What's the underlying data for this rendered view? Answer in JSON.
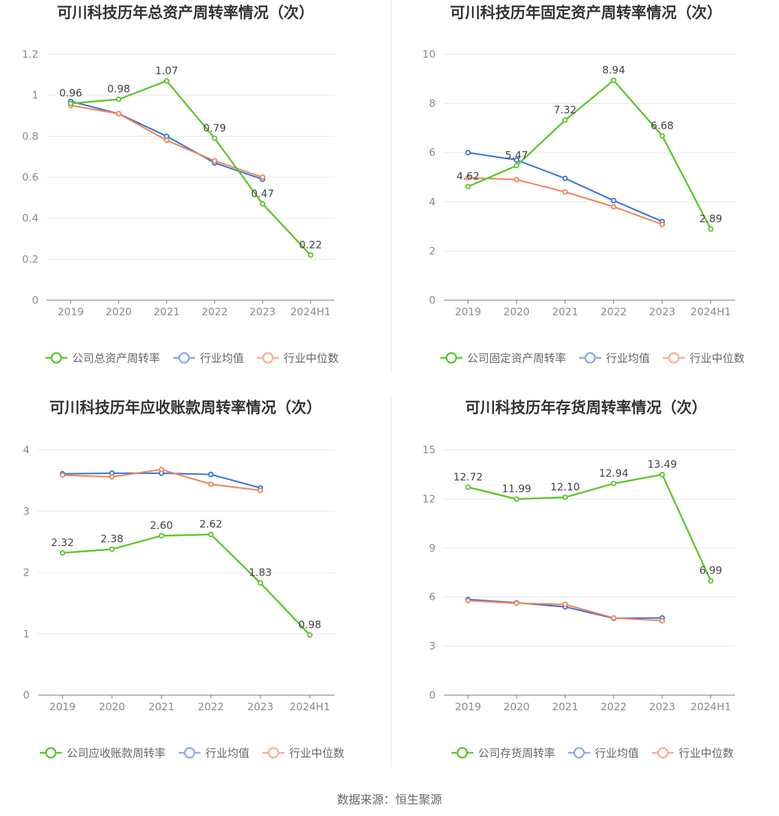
{
  "colors": {
    "company": "#5cc72b",
    "avg": "#3b73db",
    "median": "#f0855a",
    "legend_avg": "#8aacea",
    "legend_median": "#f5b095",
    "grid": "#e3e6f0",
    "axis": "#6e7079",
    "tick_text": "#8a8a8a",
    "title": "#333333",
    "label": "#444444"
  },
  "source": "数据来源：恒生聚源",
  "chart_data": [
    {
      "id": "total-asset-turnover",
      "type": "line",
      "title": "可川科技历年总资产周转率情况（次）",
      "categories": [
        "2019",
        "2020",
        "2021",
        "2022",
        "2023",
        "2024H1"
      ],
      "ylim": [
        0,
        1.2
      ],
      "yticks": [
        0,
        0.2,
        0.4,
        0.6,
        0.8,
        1,
        1.2
      ],
      "ytick_labels": [
        "0",
        "0.2",
        "0.4",
        "0.6",
        "0.8",
        "1",
        "1.2"
      ],
      "series": [
        {
          "name": "公司总资产周转率",
          "key": "company",
          "values": [
            0.96,
            0.98,
            1.07,
            0.79,
            0.47,
            0.22
          ],
          "labels": [
            "0.96",
            "0.98",
            "1.07",
            "0.79",
            "0.47",
            "0.22"
          ]
        },
        {
          "name": "行业均值",
          "key": "avg",
          "values": [
            0.97,
            0.91,
            0.8,
            0.67,
            0.59,
            null
          ]
        },
        {
          "name": "行业中位数",
          "key": "median",
          "values": [
            0.95,
            0.91,
            0.78,
            0.68,
            0.6,
            null
          ]
        }
      ]
    },
    {
      "id": "fixed-asset-turnover",
      "type": "line",
      "title": "可川科技历年固定资产周转率情况（次）",
      "categories": [
        "2019",
        "2020",
        "2021",
        "2022",
        "2023",
        "2024H1"
      ],
      "ylim": [
        0,
        10
      ],
      "yticks": [
        0,
        2,
        4,
        6,
        8,
        10
      ],
      "ytick_labels": [
        "0",
        "2",
        "4",
        "6",
        "8",
        "10"
      ],
      "series": [
        {
          "name": "公司固定资产周转率",
          "key": "company",
          "values": [
            4.62,
            5.47,
            7.32,
            8.94,
            6.68,
            2.89
          ],
          "labels": [
            "4.62",
            "5.47",
            "7.32",
            "8.94",
            "6.68",
            "2.89"
          ]
        },
        {
          "name": "行业均值",
          "key": "avg",
          "values": [
            6.0,
            5.7,
            4.95,
            4.05,
            3.2,
            null
          ]
        },
        {
          "name": "行业中位数",
          "key": "median",
          "values": [
            4.98,
            4.9,
            4.4,
            3.8,
            3.08,
            null
          ]
        }
      ]
    },
    {
      "id": "receivables-turnover",
      "type": "line",
      "title": "可川科技历年应收账款周转率情况（次）",
      "categories": [
        "2019",
        "2020",
        "2021",
        "2022",
        "2023",
        "2024H1"
      ],
      "ylim": [
        0,
        4
      ],
      "yticks": [
        0,
        1,
        2,
        3,
        4
      ],
      "ytick_labels": [
        "0",
        "1",
        "2",
        "3",
        "4"
      ],
      "series": [
        {
          "name": "公司应收账款周转率",
          "key": "company",
          "values": [
            2.32,
            2.38,
            2.6,
            2.62,
            1.83,
            0.98
          ],
          "labels": [
            "2.32",
            "2.38",
            "2.60",
            "2.62",
            "1.83",
            "0.98"
          ]
        },
        {
          "name": "行业均值",
          "key": "avg",
          "values": [
            3.61,
            3.62,
            3.62,
            3.6,
            3.38,
            null
          ]
        },
        {
          "name": "行业中位数",
          "key": "median",
          "values": [
            3.59,
            3.56,
            3.68,
            3.44,
            3.34,
            null
          ]
        }
      ]
    },
    {
      "id": "inventory-turnover",
      "type": "line",
      "title": "可川科技历年存货周转率情况（次）",
      "categories": [
        "2019",
        "2020",
        "2021",
        "2022",
        "2023",
        "2024H1"
      ],
      "ylim": [
        0,
        15
      ],
      "yticks": [
        0,
        3,
        6,
        9,
        12,
        15
      ],
      "ytick_labels": [
        "0",
        "3",
        "6",
        "9",
        "12",
        "15"
      ],
      "series": [
        {
          "name": "公司存货周转率",
          "key": "company",
          "values": [
            12.72,
            11.99,
            12.1,
            12.94,
            13.49,
            6.99
          ],
          "labels": [
            "12.72",
            "11.99",
            "12.10",
            "12.94",
            "13.49",
            "6.99"
          ]
        },
        {
          "name": "行业均值",
          "key": "avg",
          "values": [
            5.85,
            5.65,
            5.4,
            4.7,
            4.72,
            null
          ]
        },
        {
          "name": "行业中位数",
          "key": "median",
          "values": [
            5.78,
            5.62,
            5.55,
            4.72,
            4.55,
            null
          ]
        }
      ]
    }
  ]
}
